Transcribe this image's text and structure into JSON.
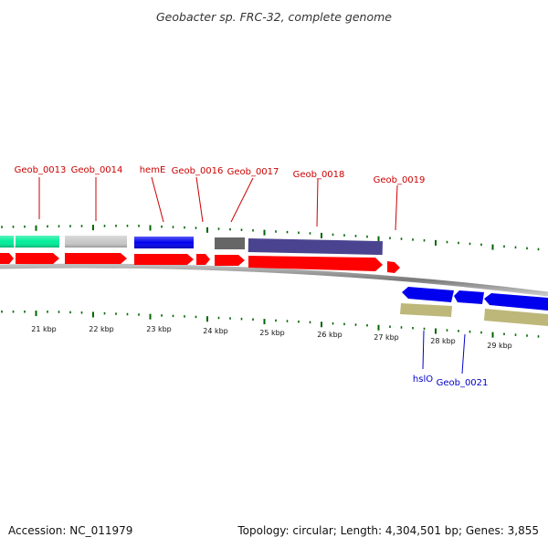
{
  "title": "Geobacter sp. FRC-32, complete genome",
  "top_labels": [
    "Geob_0013",
    "Geob_0014",
    "hemE",
    "Geob_0016",
    "Geob_0017",
    "Geob_0018",
    "Geob_0019"
  ],
  "bottom_labels": [
    "hslO",
    "Geob_0021"
  ],
  "kbp_ticks": [
    "21 kbp",
    "22 kbp",
    "23 kbp",
    "24 kbp",
    "25 kbp",
    "26 kbp",
    "27 kbp",
    "28 kbp",
    "29 kbp"
  ],
  "footer": {
    "accession": "Accession: NC_011979",
    "summary": "Topology: circular; Length: 4,304,501 bp; Genes: 3,855"
  },
  "colors": {
    "cds_red": "#ff0000",
    "green": "#00ee99",
    "gray": "#c8c8c8",
    "blue": "#0000ee",
    "dark_gray": "#666666",
    "slate": "#4a4490",
    "khaki": "#bdb77a",
    "tick_green": "#006600",
    "label_red": "#cc0000",
    "label_blue": "#0000cc"
  }
}
